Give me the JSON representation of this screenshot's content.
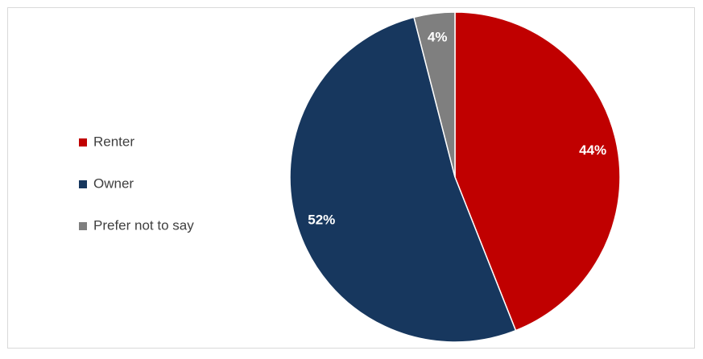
{
  "chart_data": {
    "type": "pie",
    "categories": [
      "Renter",
      "Owner",
      "Prefer not to say"
    ],
    "values": [
      44,
      52,
      4
    ],
    "value_labels": [
      "44%",
      "52%",
      "4%"
    ],
    "colors": [
      "#c00000",
      "#17375e",
      "#7f7f7f"
    ],
    "legend": "left"
  }
}
